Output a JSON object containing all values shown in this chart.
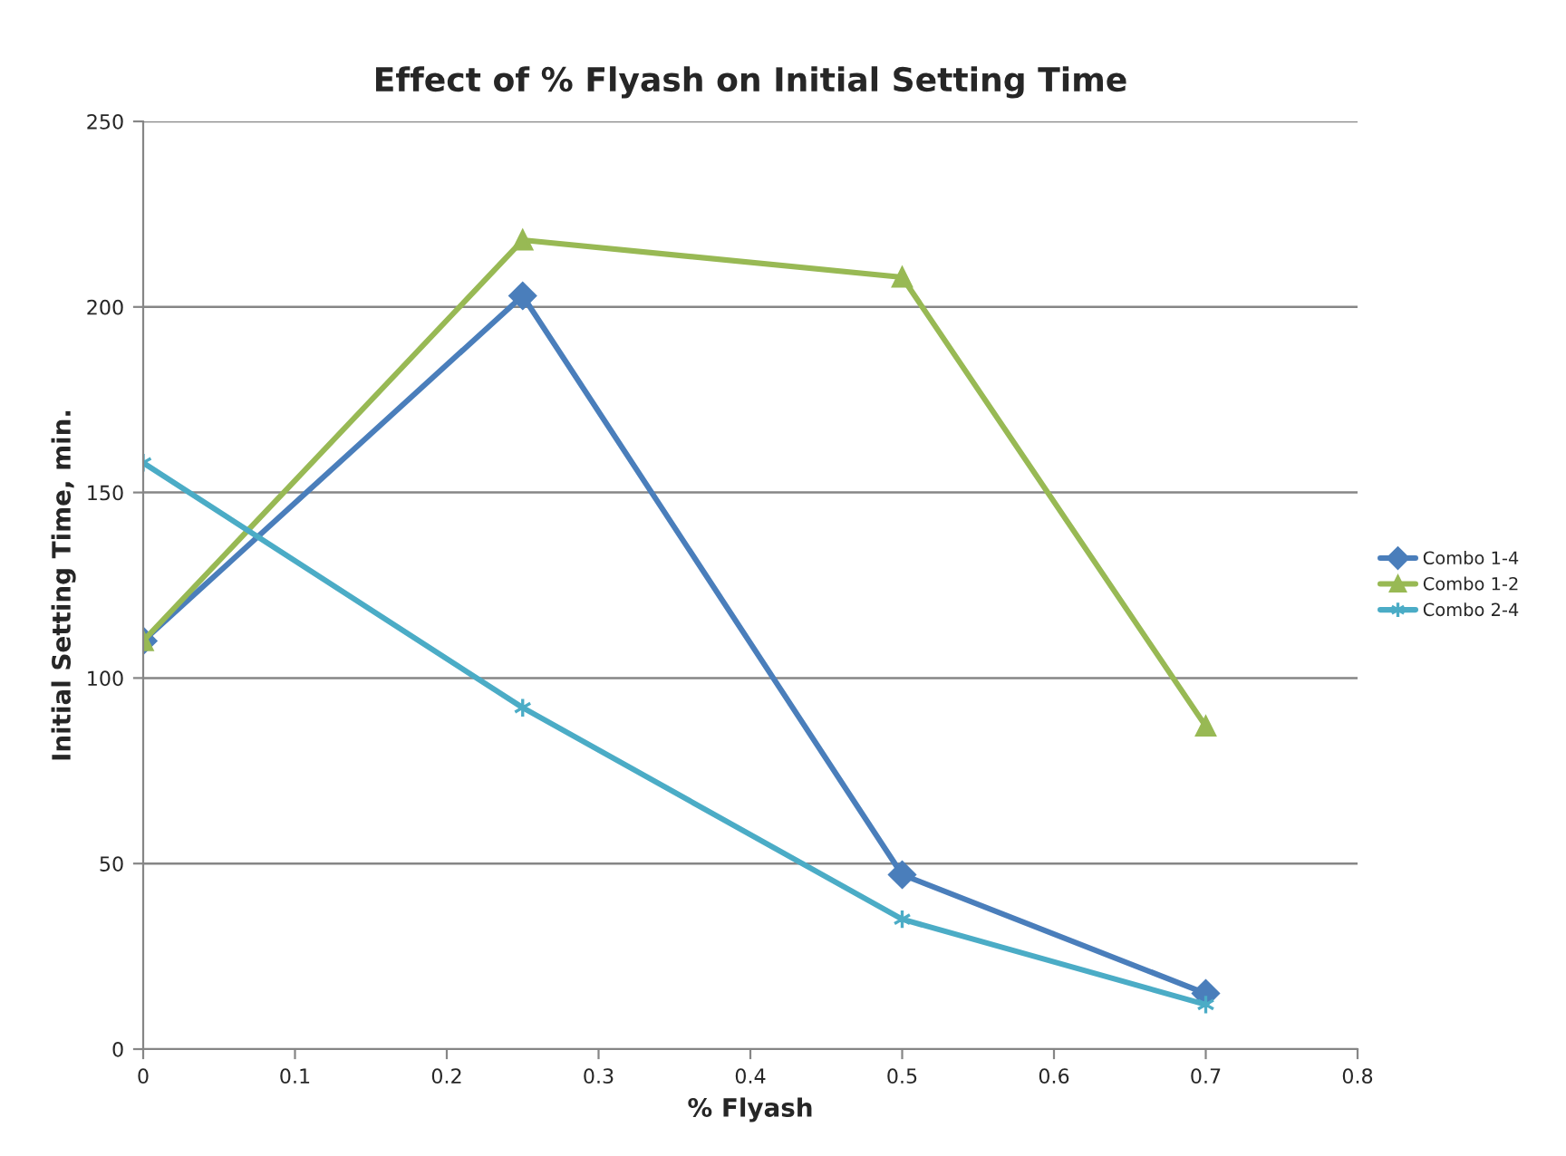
{
  "chart_data": {
    "type": "line",
    "title": "Effect of % Flyash on Initial Setting Time",
    "xlabel": "% Flyash",
    "ylabel": "Initial Setting Time, min.",
    "x": [
      0,
      0.25,
      0.5,
      0.7
    ],
    "series": [
      {
        "name": "Combo 1-4",
        "color": "#4a7ebb",
        "marker": "diamond",
        "values": [
          110,
          203,
          47,
          15
        ]
      },
      {
        "name": "Combo 1-2",
        "color": "#98b954",
        "marker": "triangle",
        "values": [
          110,
          218,
          208,
          87
        ]
      },
      {
        "name": "Combo 2-4",
        "color": "#4bacc6",
        "marker": "cross",
        "values": [
          158,
          92,
          35,
          12
        ]
      }
    ],
    "xlim": [
      0,
      0.8
    ],
    "xticks": [
      0,
      0.1,
      0.2,
      0.3,
      0.4,
      0.5,
      0.6,
      0.7,
      0.8
    ],
    "ylim": [
      0,
      250
    ],
    "yticks": [
      0,
      50,
      100,
      150,
      200,
      250
    ],
    "grid": "y",
    "legend": "right",
    "line_style": "solid"
  }
}
